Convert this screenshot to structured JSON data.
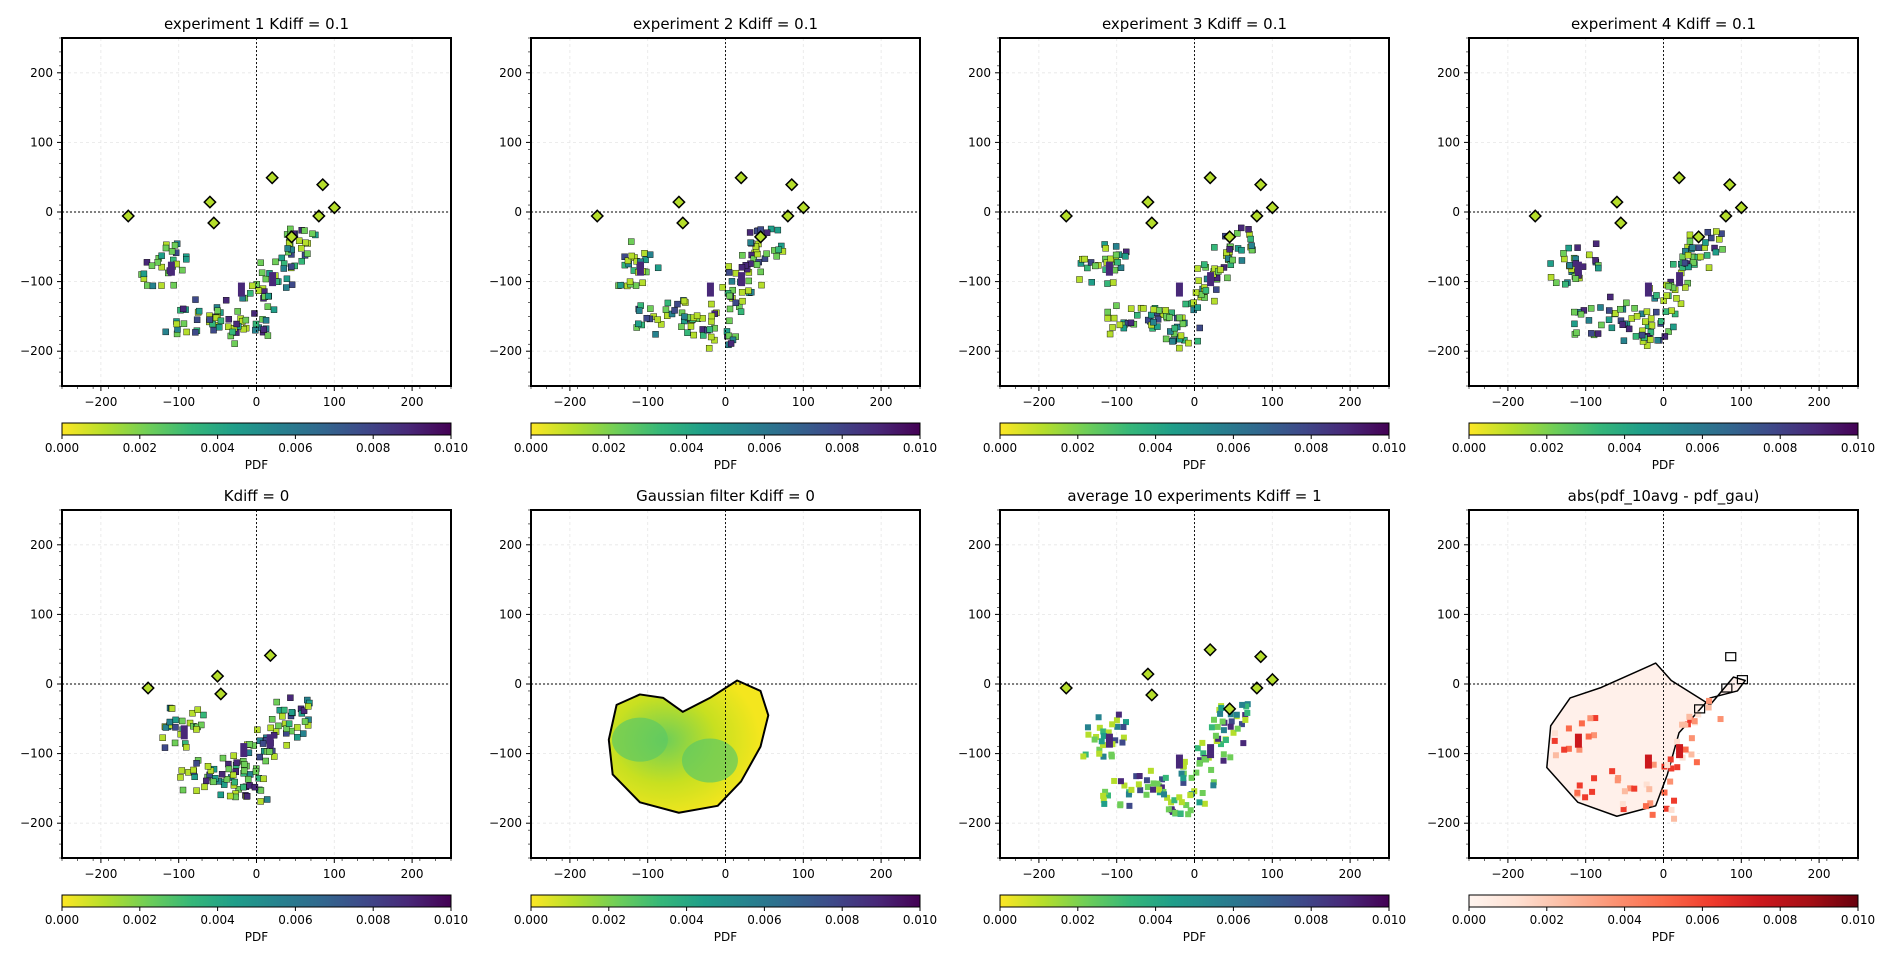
{
  "figure": {
    "panels": [
      {
        "title": "experiment 1 Kdiff = 0.1",
        "colorbar_label": "PDF",
        "colormap": "viridis_r"
      },
      {
        "title": "experiment 2 Kdiff = 0.1",
        "colorbar_label": "PDF",
        "colormap": "viridis_r"
      },
      {
        "title": "experiment 3 Kdiff = 0.1",
        "colorbar_label": "PDF",
        "colormap": "viridis_r"
      },
      {
        "title": "experiment 4 Kdiff = 0.1",
        "colorbar_label": "PDF",
        "colormap": "viridis_r"
      },
      {
        "title": "Kdiff = 0",
        "colorbar_label": "PDF",
        "colormap": "viridis_r"
      },
      {
        "title": "Gaussian filter Kdiff = 0",
        "colorbar_label": "PDF",
        "colormap": "viridis_r"
      },
      {
        "title": "average 10 experiments Kdiff = 1",
        "colorbar_label": "PDF",
        "colormap": "viridis_r"
      },
      {
        "title": "abs(pdf_10avg - pdf_gau)",
        "colorbar_label": "PDF",
        "colormap": "Reds"
      }
    ]
  },
  "chart_data": {
    "type": "heatmap",
    "layout": "2x4 grid of 2D PDF maps",
    "xlim": [
      -250,
      250
    ],
    "ylim": [
      -250,
      250
    ],
    "xticks": [
      -200,
      -100,
      0,
      100,
      200
    ],
    "yticks": [
      -200,
      -100,
      0,
      100,
      200
    ],
    "xtick_labels": [
      "−200",
      "−100",
      "0",
      "100",
      "200"
    ],
    "ytick_labels": [
      "−200",
      "−100",
      "0",
      "100",
      "200"
    ],
    "reference_lines": {
      "x": 0,
      "y": 0,
      "style": "dotted"
    },
    "grid": true,
    "colorbar": {
      "range": [
        0,
        0.01
      ],
      "ticks": [
        "0.000",
        "0.002",
        "0.004",
        "0.006",
        "0.008",
        "0.010"
      ],
      "label": "PDF",
      "orientation": "horizontal"
    },
    "features": {
      "main_blob": {
        "description_points": [
          [
            -130,
            -80
          ],
          [
            -110,
            -60
          ],
          [
            -100,
            -150
          ],
          [
            -60,
            -140
          ],
          [
            -40,
            -160
          ],
          [
            -10,
            -170
          ],
          [
            0,
            -120
          ],
          [
            20,
            -90
          ],
          [
            40,
            -60
          ],
          [
            50,
            -40
          ]
        ],
        "peaks": [
          [
            -110,
            -80
          ],
          [
            -20,
            -110
          ],
          [
            20,
            -95
          ]
        ]
      },
      "scattered_islands": [
        [
          -170,
          0
        ],
        [
          -65,
          20
        ],
        [
          -60,
          -10
        ],
        [
          15,
          55
        ],
        [
          80,
          45
        ],
        [
          95,
          12
        ],
        [
          75,
          0
        ],
        [
          40,
          -30
        ]
      ],
      "gaussian_contour": [
        [
          -150,
          -80
        ],
        [
          -140,
          -30
        ],
        [
          -110,
          -15
        ],
        [
          -80,
          -20
        ],
        [
          -55,
          -40
        ],
        [
          -20,
          -20
        ],
        [
          15,
          5
        ],
        [
          45,
          -10
        ],
        [
          55,
          -45
        ],
        [
          45,
          -90
        ],
        [
          20,
          -140
        ],
        [
          -10,
          -175
        ],
        [
          -60,
          -185
        ],
        [
          -110,
          -170
        ],
        [
          -145,
          -130
        ]
      ],
      "abs_diff_outer_contour": [
        [
          -145,
          -60
        ],
        [
          -120,
          -20
        ],
        [
          -80,
          -5
        ],
        [
          -40,
          15
        ],
        [
          -10,
          30
        ],
        [
          10,
          5
        ],
        [
          60,
          -30
        ],
        [
          90,
          10
        ],
        [
          105,
          5
        ],
        [
          95,
          -10
        ],
        [
          60,
          -20
        ],
        [
          20,
          -70
        ],
        [
          5,
          -130
        ],
        [
          -10,
          -175
        ],
        [
          -60,
          -190
        ],
        [
          -110,
          -170
        ],
        [
          -150,
          -120
        ]
      ]
    }
  }
}
